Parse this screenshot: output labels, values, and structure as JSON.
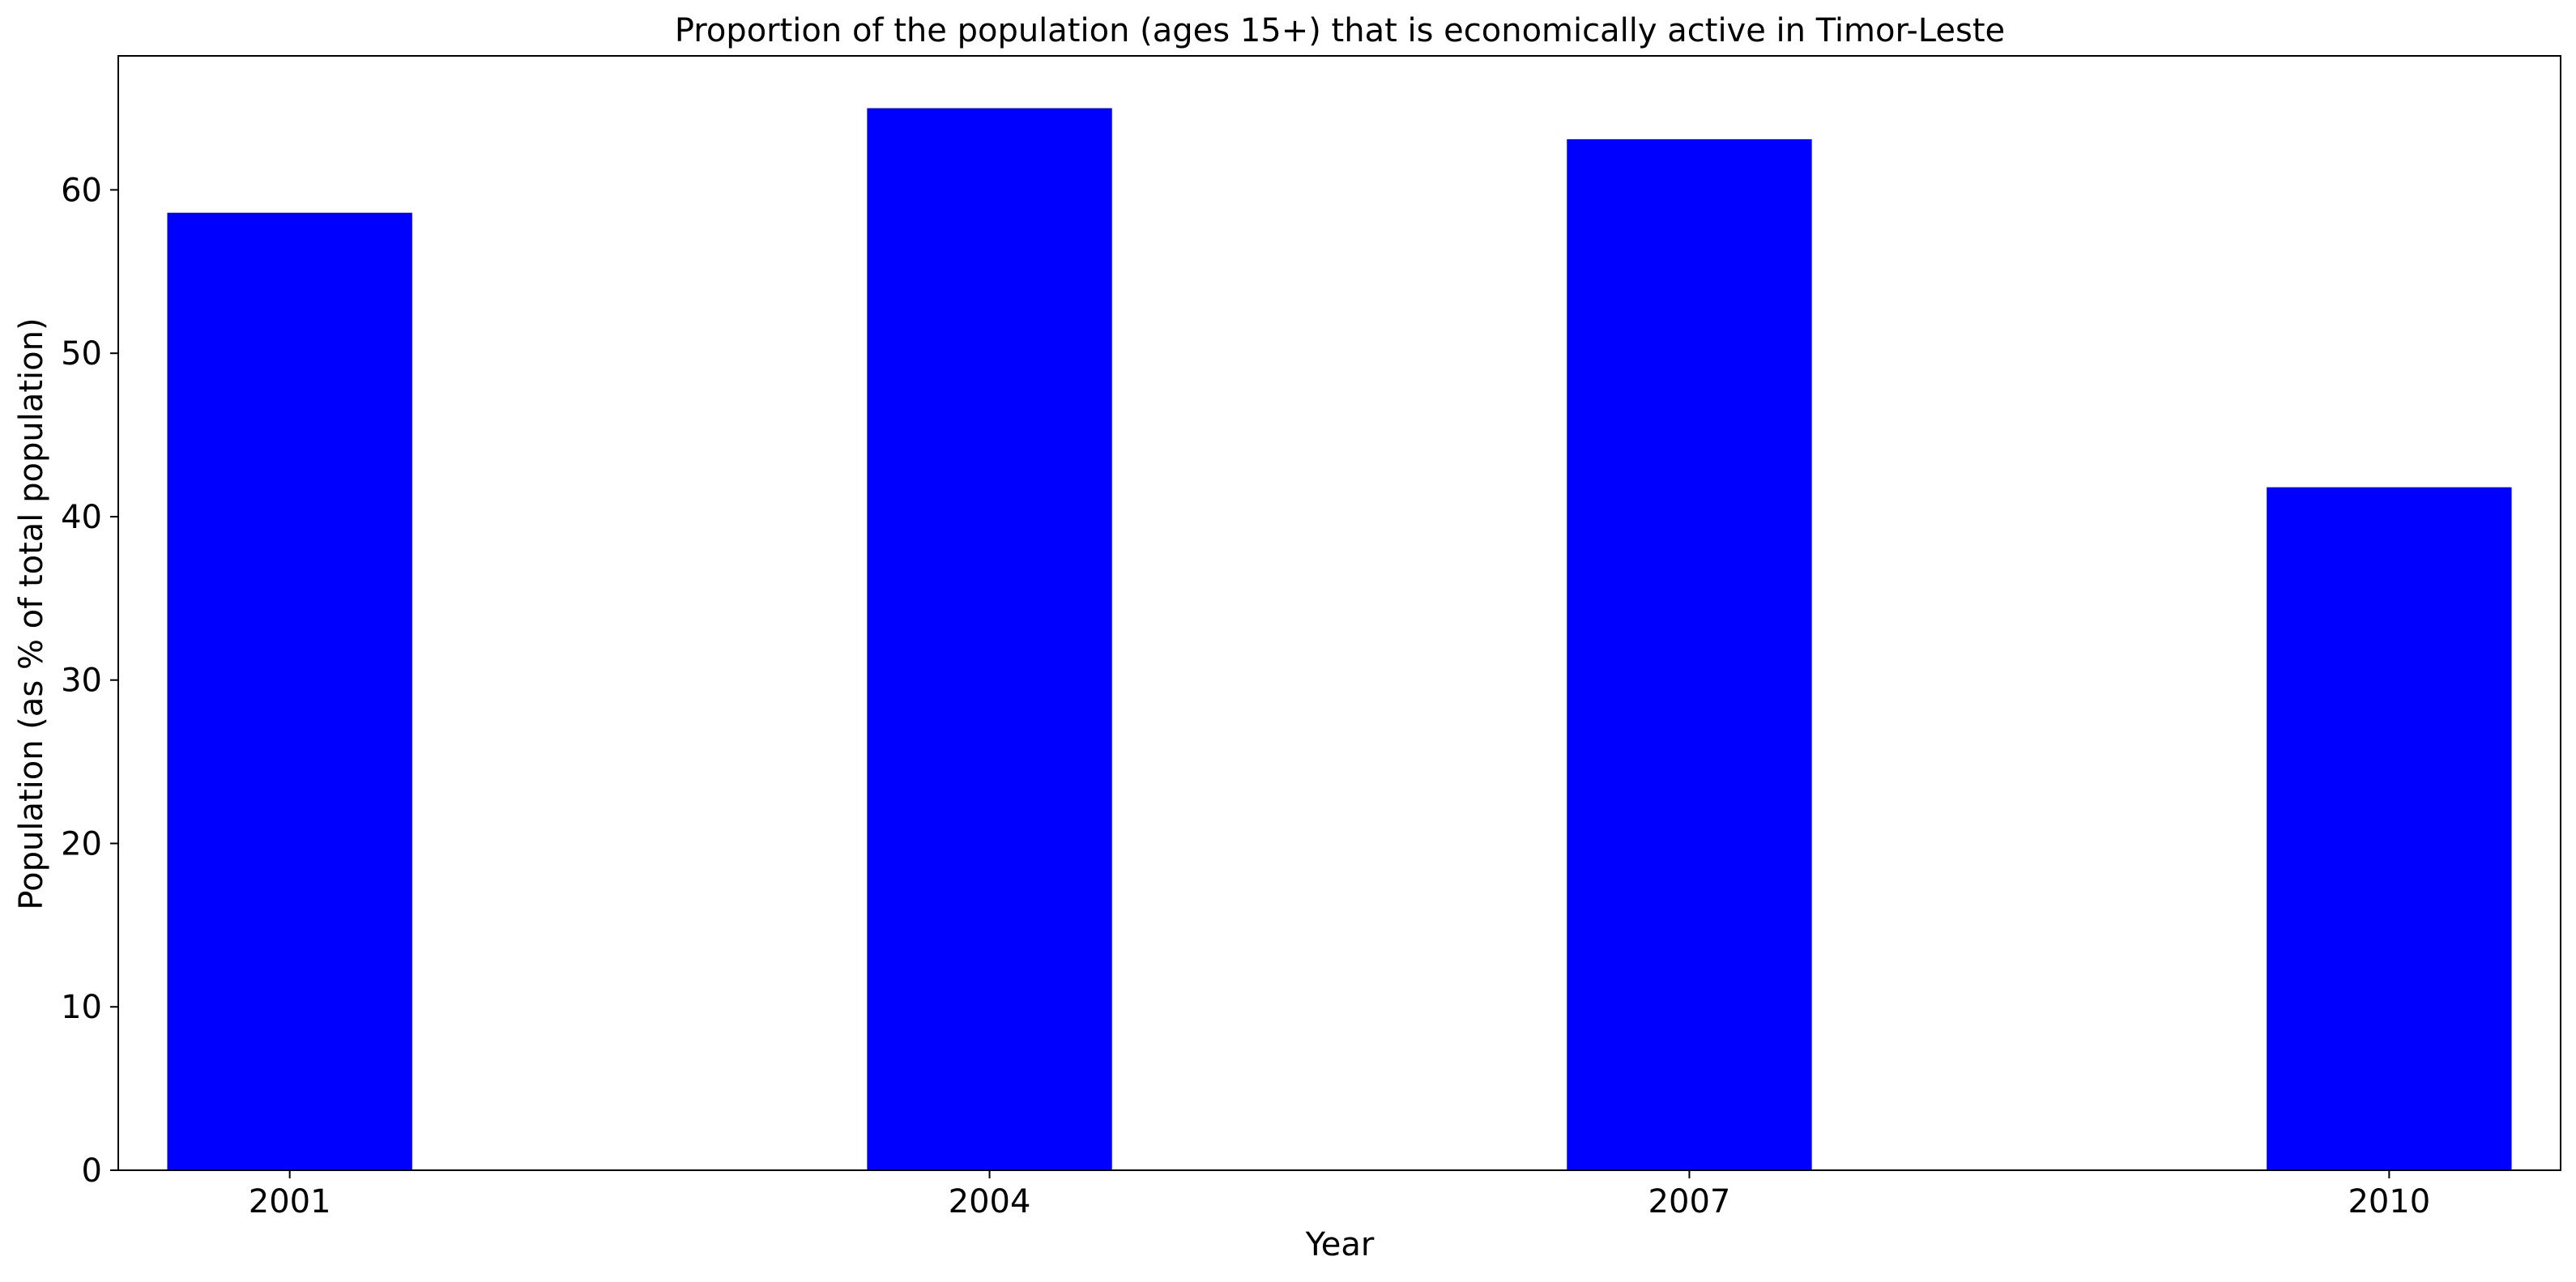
{
  "chart_data": {
    "type": "bar",
    "title": "Proportion of the population (ages 15+) that is economically active in Timor-Leste",
    "xlabel": "Year",
    "ylabel": "Population (as % of total population)",
    "categories": [
      "2001",
      "2004",
      "2007",
      "2010"
    ],
    "values": [
      58.6,
      65.0,
      63.1,
      41.8
    ],
    "ylim": [
      0,
      68.2
    ],
    "yticks": [
      0,
      10,
      20,
      30,
      40,
      50,
      60
    ],
    "grid": false,
    "legend": "none",
    "bar_color": "#0000ff"
  }
}
